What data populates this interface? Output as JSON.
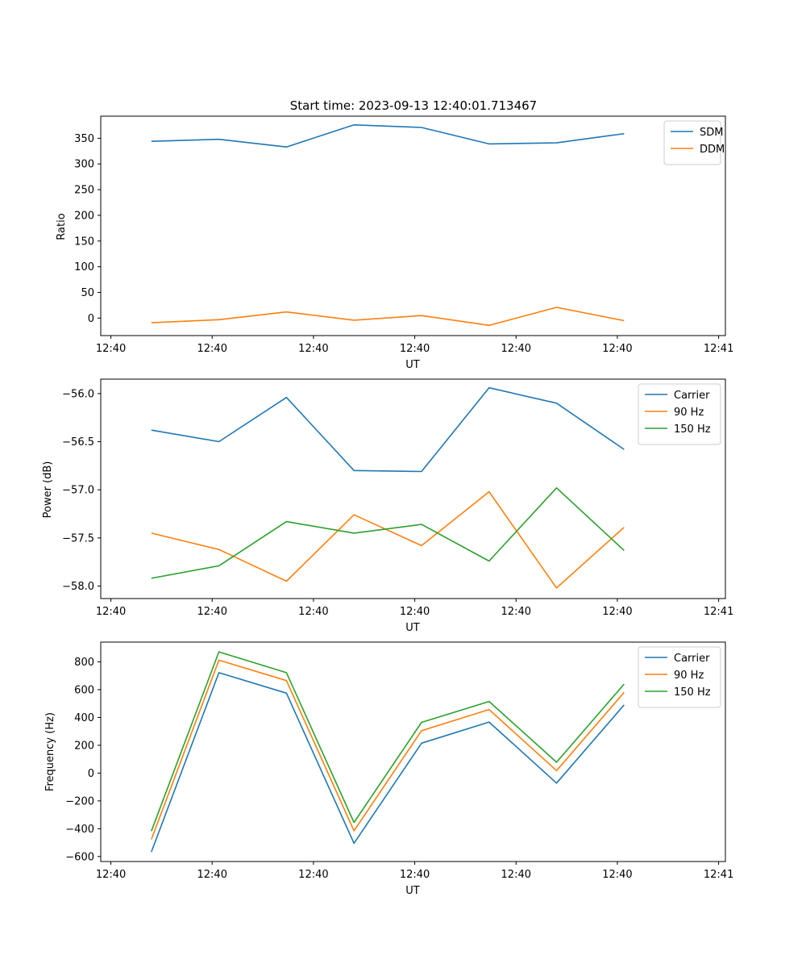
{
  "figure_title": "Start time: 2023-09-13 12:40:01.713467",
  "chart_data": [
    {
      "type": "line",
      "title": "Start time: 2023-09-13 12:40:01.713467",
      "xlabel": "UT",
      "ylabel": "Ratio",
      "xlim": [
        -0.75,
        8.5
      ],
      "ylim": [
        -34,
        393
      ],
      "x_ticks": [
        {
          "value": -0.6,
          "label": "12:40"
        },
        {
          "value": 0.9,
          "label": "12:40"
        },
        {
          "value": 2.4,
          "label": "12:40"
        },
        {
          "value": 3.9,
          "label": "12:40"
        },
        {
          "value": 5.4,
          "label": "12:40"
        },
        {
          "value": 6.9,
          "label": "12:40"
        },
        {
          "value": 8.4,
          "label": "12:41"
        }
      ],
      "y_ticks": [
        0,
        50,
        100,
        150,
        200,
        250,
        300,
        350
      ],
      "x": [
        0,
        1,
        2,
        3,
        4,
        5,
        6,
        7
      ],
      "series": [
        {
          "name": "SDM",
          "color": "#1f77b4",
          "values": [
            344,
            348,
            333,
            376,
            371,
            339,
            341,
            359
          ]
        },
        {
          "name": "DDM",
          "color": "#ff7f0e",
          "values": [
            -9,
            -3,
            12,
            -4,
            5,
            -14,
            21,
            -5
          ]
        }
      ],
      "legend": "top-right"
    },
    {
      "type": "line",
      "title": "",
      "xlabel": "UT",
      "ylabel": "Power (dB)",
      "xlim": [
        -0.75,
        8.5
      ],
      "ylim": [
        -58.13,
        -55.85
      ],
      "x_ticks": [
        {
          "value": -0.6,
          "label": "12:40"
        },
        {
          "value": 0.9,
          "label": "12:40"
        },
        {
          "value": 2.4,
          "label": "12:40"
        },
        {
          "value": 3.9,
          "label": "12:40"
        },
        {
          "value": 5.4,
          "label": "12:40"
        },
        {
          "value": 6.9,
          "label": "12:40"
        },
        {
          "value": 8.4,
          "label": "12:41"
        }
      ],
      "y_ticks": [
        {
          "value": -58.0,
          "label": "−58.0"
        },
        {
          "value": -57.5,
          "label": "−57.5"
        },
        {
          "value": -57.0,
          "label": "−57.0"
        },
        {
          "value": -56.5,
          "label": "−56.5"
        },
        {
          "value": -56.0,
          "label": "−56.0"
        }
      ],
      "x": [
        0,
        1,
        2,
        3,
        4,
        5,
        6,
        7
      ],
      "series": [
        {
          "name": "Carrier",
          "color": "#1f77b4",
          "values": [
            -56.38,
            -56.5,
            -56.04,
            -56.8,
            -56.81,
            -55.94,
            -56.1,
            -56.58
          ]
        },
        {
          "name": "90 Hz",
          "color": "#ff7f0e",
          "values": [
            -57.45,
            -57.62,
            -57.95,
            -57.26,
            -57.58,
            -57.02,
            -58.02,
            -57.39
          ]
        },
        {
          "name": "150 Hz",
          "color": "#2ca02c",
          "values": [
            -57.92,
            -57.79,
            -57.33,
            -57.45,
            -57.36,
            -57.74,
            -56.98,
            -57.63
          ]
        }
      ],
      "legend": "top-right"
    },
    {
      "type": "line",
      "title": "",
      "xlabel": "UT",
      "ylabel": "Frequency (Hz)",
      "xlim": [
        -0.75,
        8.5
      ],
      "ylim": [
        -636,
        942
      ],
      "x_ticks": [
        {
          "value": -0.6,
          "label": "12:40"
        },
        {
          "value": 0.9,
          "label": "12:40"
        },
        {
          "value": 2.4,
          "label": "12:40"
        },
        {
          "value": 3.9,
          "label": "12:40"
        },
        {
          "value": 5.4,
          "label": "12:40"
        },
        {
          "value": 6.9,
          "label": "12:40"
        },
        {
          "value": 8.4,
          "label": "12:41"
        }
      ],
      "y_ticks": [
        {
          "value": -600,
          "label": "−600"
        },
        {
          "value": -400,
          "label": "−400"
        },
        {
          "value": -200,
          "label": "−200"
        },
        {
          "value": 0,
          "label": "0"
        },
        {
          "value": 200,
          "label": "200"
        },
        {
          "value": 400,
          "label": "400"
        },
        {
          "value": 600,
          "label": "600"
        },
        {
          "value": 800,
          "label": "800"
        }
      ],
      "x": [
        0,
        1,
        2,
        3,
        4,
        5,
        6,
        7
      ],
      "series": [
        {
          "name": "Carrier",
          "color": "#1f77b4",
          "values": [
            -567,
            722,
            575,
            -505,
            215,
            367,
            -72,
            490
          ]
        },
        {
          "name": "90 Hz",
          "color": "#ff7f0e",
          "values": [
            -477,
            812,
            665,
            -415,
            305,
            457,
            18,
            580
          ]
        },
        {
          "name": "150 Hz",
          "color": "#2ca02c",
          "values": [
            -417,
            872,
            722,
            -355,
            365,
            515,
            78,
            640
          ]
        }
      ],
      "legend": "top-right"
    }
  ]
}
